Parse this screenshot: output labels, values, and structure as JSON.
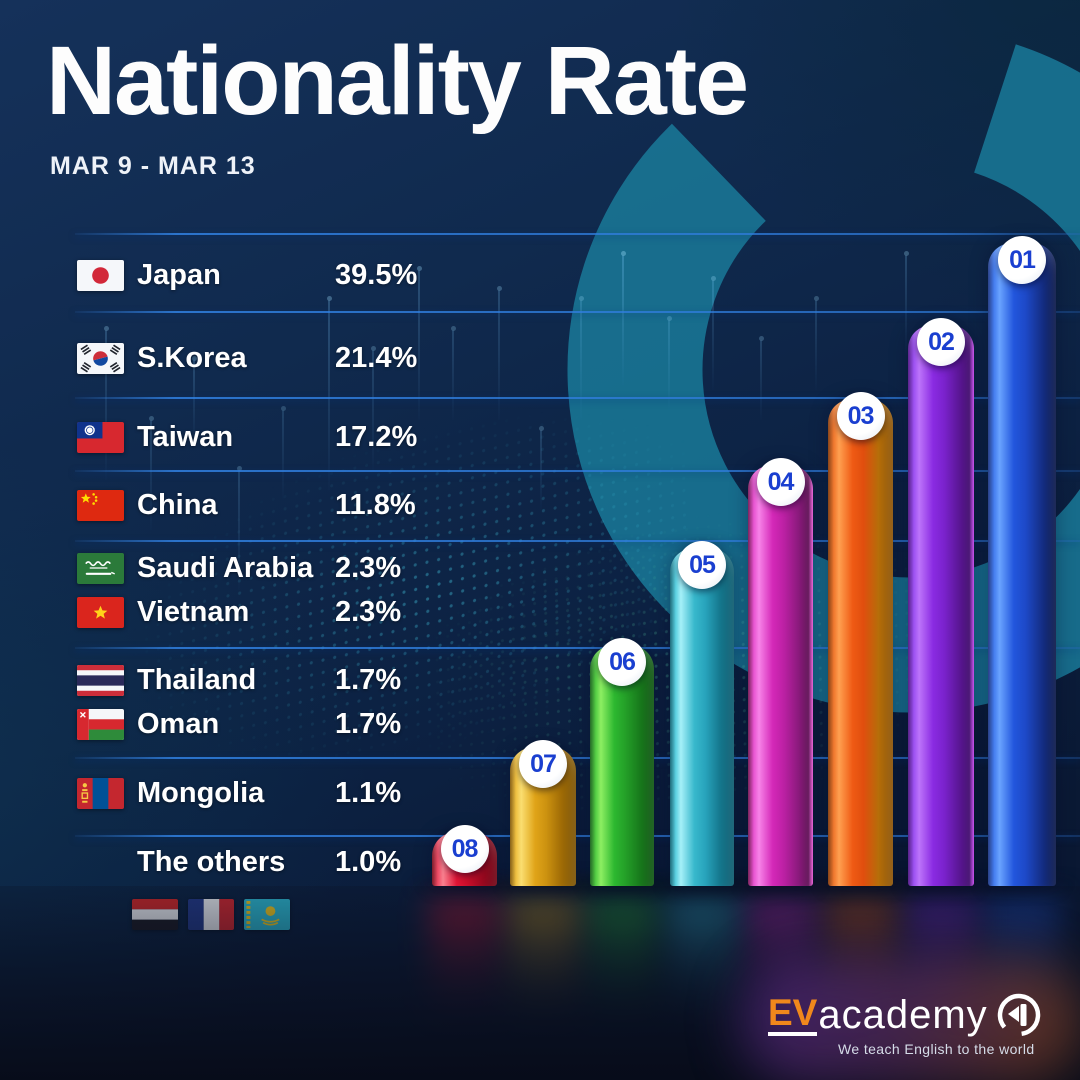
{
  "header": {
    "title": "Nationality Rate",
    "subtitle": "MAR 9 - MAR 13"
  },
  "table": {
    "rows": [
      {
        "country": "Japan",
        "value": "39.5%",
        "flag": "japan"
      },
      {
        "country": "S.Korea",
        "value": "21.4%",
        "flag": "south-korea"
      },
      {
        "country": "Taiwan",
        "value": "17.2%",
        "flag": "taiwan"
      },
      {
        "country": "China",
        "value": "11.8%",
        "flag": "china"
      },
      {
        "country": "Saudi Arabia",
        "value": "2.3%",
        "flag": "saudi-arabia"
      },
      {
        "country": "Vietnam",
        "value": "2.3%",
        "flag": "vietnam"
      },
      {
        "country": "Thailand",
        "value": "1.7%",
        "flag": "thailand"
      },
      {
        "country": "Oman",
        "value": "1.7%",
        "flag": "oman"
      },
      {
        "country": "Mongolia",
        "value": "1.1%",
        "flag": "mongolia"
      },
      {
        "country": "The others",
        "value": "1.0%",
        "flag": null
      }
    ],
    "other_flags": [
      "yemen",
      "france",
      "kazakhstan"
    ]
  },
  "chart_data": {
    "type": "bar",
    "title": "Nationality Rate",
    "subtitle": "MAR 9 - MAR 13",
    "unit": "%",
    "categories": [
      "Japan",
      "S.Korea",
      "Taiwan",
      "China",
      "Saudi Arabia",
      "Vietnam",
      "Thailand",
      "Oman",
      "Mongolia",
      "The others"
    ],
    "values": [
      39.5,
      21.4,
      17.2,
      11.8,
      2.3,
      2.3,
      1.7,
      1.7,
      1.1,
      1.0
    ],
    "legend": "none",
    "rank_bars": [
      {
        "label": "01",
        "color": "#2457e0"
      },
      {
        "label": "02",
        "color": "#8a2be0"
      },
      {
        "label": "03",
        "color": "#ef5a14"
      },
      {
        "label": "04",
        "color": "#d428b8"
      },
      {
        "label": "05",
        "color": "#35b7cc"
      },
      {
        "label": "06",
        "color": "#2eb830"
      },
      {
        "label": "07",
        "color": "#e2a517"
      },
      {
        "label": "08",
        "color": "#e0152f"
      }
    ],
    "badge_text_color": "#1a3fd0"
  },
  "logo": {
    "brand_primary": "EV",
    "brand_secondary": "academy",
    "tagline": "We teach English to the world",
    "accent_color": "#f0881c"
  }
}
